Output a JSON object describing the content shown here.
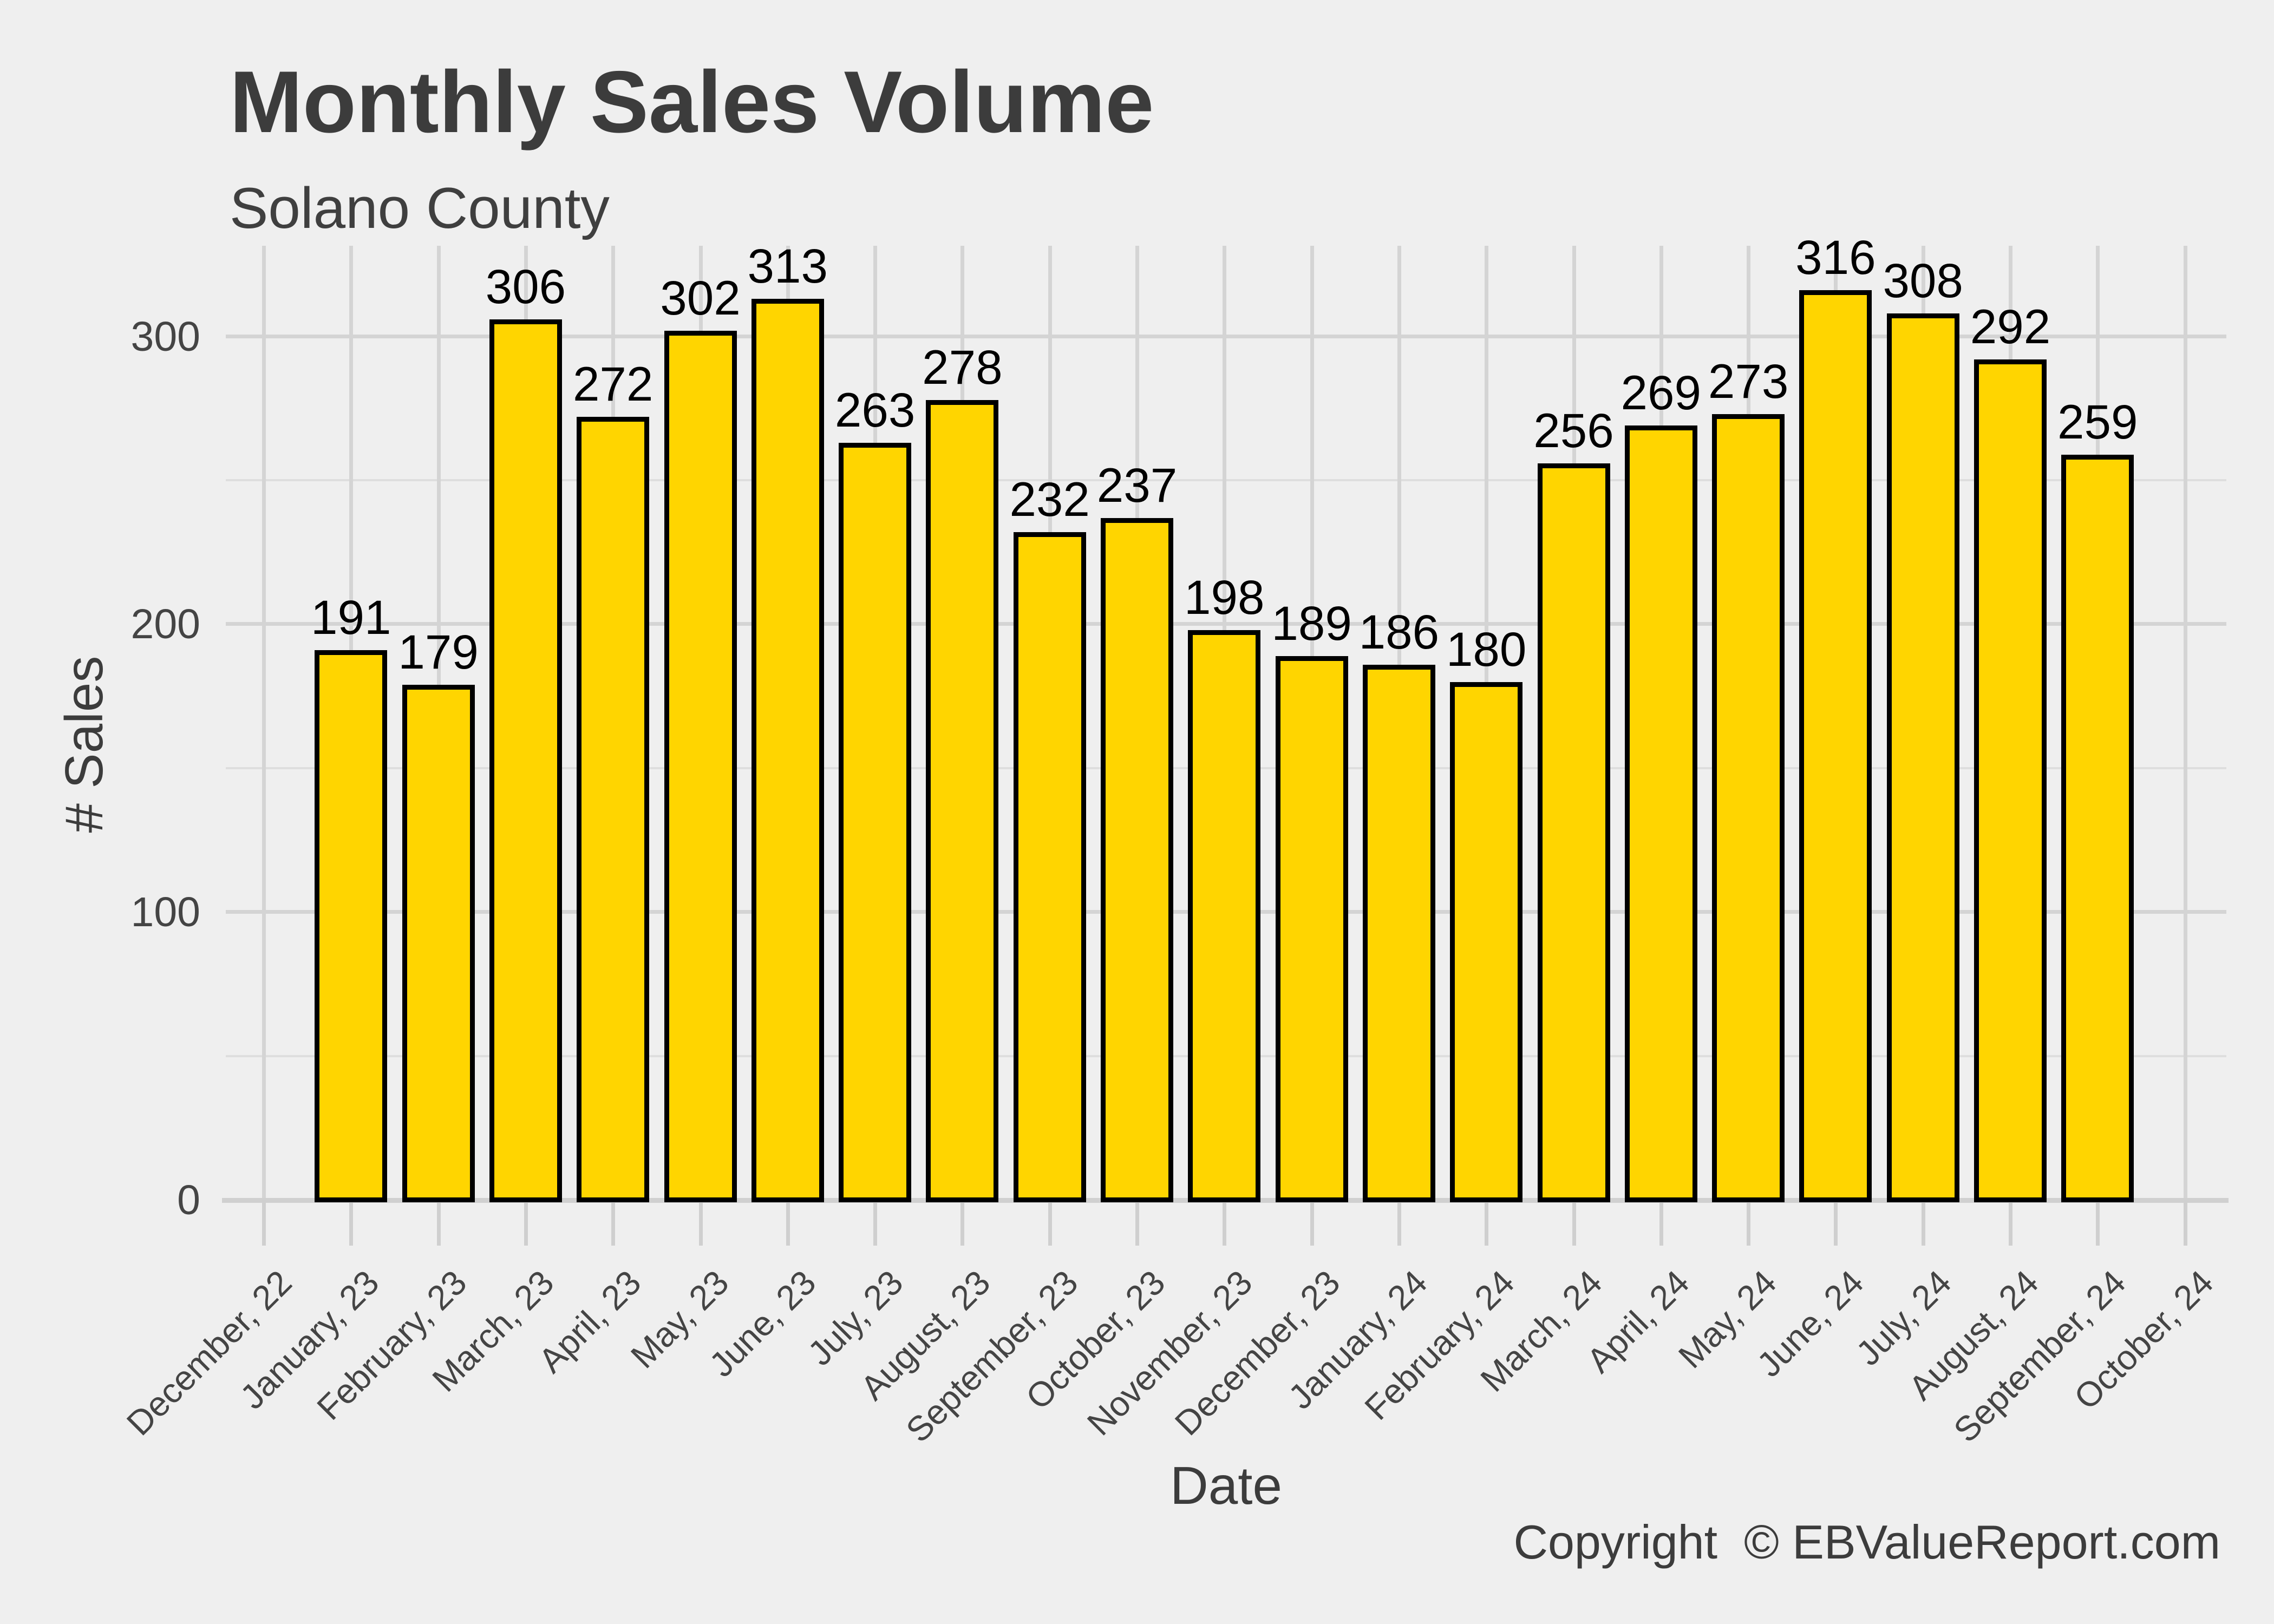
{
  "chart_data": {
    "type": "bar",
    "title": "Monthly Sales Volume",
    "subtitle": "Solano County",
    "xlabel": "Date",
    "ylabel": "# Sales",
    "footer": "Copyright  © EBValueReport.com",
    "categories": [
      "December, 22",
      "January, 23",
      "February, 23",
      "March, 23",
      "April, 23",
      "May, 23",
      "June, 23",
      "July, 23",
      "August, 23",
      "September, 23",
      "October, 23",
      "November, 23",
      "December, 23",
      "January, 24",
      "February, 24",
      "March, 24",
      "April, 24",
      "May, 24",
      "June, 24",
      "July, 24",
      "August, 24",
      "September, 24",
      "October, 24"
    ],
    "values": [
      null,
      191,
      179,
      306,
      272,
      302,
      313,
      263,
      278,
      232,
      237,
      198,
      189,
      186,
      180,
      256,
      269,
      273,
      316,
      308,
      292,
      259,
      null
    ],
    "y_ticks": [
      0,
      100,
      200,
      300
    ],
    "y_minor_ticks": [
      50,
      150,
      250
    ],
    "ylim": [
      0,
      331.5
    ],
    "x_tick_angle": -45,
    "grid": "major and minor horizontal, vertical per category",
    "legend": "none",
    "bar_labels_shown": true,
    "colors": {
      "background": "#EFEFEF",
      "bar_fill": "#FFD500",
      "bar_border": "#000000",
      "grid_major": "#D4D4D4",
      "grid_minor": "#DEDEDE",
      "axis_line": "#D0D0D0",
      "tick": "#CFCFCF",
      "title_text": "#3C3C3C",
      "axis_text": "#444444",
      "value_label_text": "#000000"
    }
  }
}
